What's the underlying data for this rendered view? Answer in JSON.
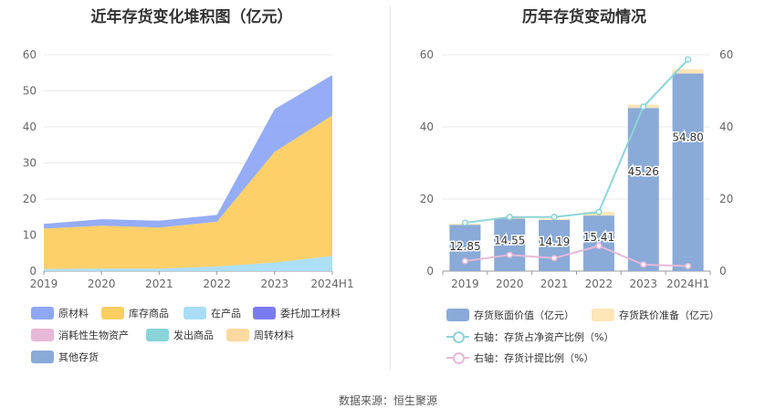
{
  "chart_data": [
    {
      "type": "area",
      "title": "近年存货变化堆积图（亿元）",
      "categories": [
        "2019",
        "2020",
        "2021",
        "2022",
        "2023",
        "2024H1"
      ],
      "ylim": [
        0,
        60
      ],
      "yticks": [
        "0",
        "10",
        "20",
        "30",
        "40",
        "50",
        "60"
      ],
      "stacked": true,
      "series": [
        {
          "name": "原材料",
          "color": "#8fa8f5",
          "values": [
            1.3,
            1.8,
            1.9,
            1.9,
            11.8,
            11.2
          ]
        },
        {
          "name": "库存商品",
          "color": "#fdce62",
          "values": [
            11.2,
            11.9,
            11.4,
            12.4,
            30.7,
            39.0
          ]
        },
        {
          "name": "在产品",
          "color": "#a9ddf5",
          "values": [
            0.6,
            0.7,
            0.7,
            1.3,
            2.4,
            4.2
          ]
        },
        {
          "name": "委托加工材料",
          "color": "#7b7bf0",
          "values": [
            0,
            0,
            0,
            0,
            0,
            0
          ]
        },
        {
          "name": "消耗性生物资产",
          "color": "#e8b8d8",
          "values": [
            0,
            0,
            0,
            0,
            0,
            0
          ]
        },
        {
          "name": "发出商品",
          "color": "#88d4d8",
          "values": [
            0,
            0,
            0,
            0,
            0,
            0
          ]
        },
        {
          "name": "周转材料",
          "color": "#fcd9a0",
          "values": [
            0,
            0,
            0,
            0,
            0,
            0
          ]
        },
        {
          "name": "其他存货",
          "color": "#8aaad8",
          "values": [
            0,
            0,
            0,
            0,
            0,
            0
          ]
        }
      ],
      "grid": true,
      "legend_position": "bottom"
    },
    {
      "type": "bar",
      "title": "历年存货变动情况",
      "categories": [
        "2019",
        "2020",
        "2021",
        "2022",
        "2023",
        "2024H1"
      ],
      "ylim": [
        0,
        60
      ],
      "yticks": [
        "0",
        "20",
        "40",
        "60"
      ],
      "y2lim": [
        0,
        60
      ],
      "y2ticks": [
        "0",
        "20",
        "40",
        "60"
      ],
      "stacked": true,
      "series": [
        {
          "name": "存货账面价值（亿元）",
          "color": "#8aaad8",
          "values": [
            12.85,
            14.55,
            14.19,
            15.41,
            45.26,
            54.8
          ],
          "labels": [
            "12.85",
            "14.55",
            "14.19",
            "15.41",
            "45.26",
            "54.80"
          ]
        },
        {
          "name": "存货跌价准备（亿元）",
          "color": "#fde6b8",
          "values": [
            0.3,
            0.3,
            0.35,
            1.0,
            0.9,
            1.2
          ]
        }
      ],
      "lines": [
        {
          "name": "右轴：存货占净资产比例（%）",
          "color": "#8ed4d8",
          "axis": "right",
          "values": [
            13.4,
            15.0,
            15.0,
            16.4,
            45.6,
            58.7
          ]
        },
        {
          "name": "右轴：存货计提比例（%）",
          "color": "#e8b8d8",
          "axis": "right",
          "values": [
            2.8,
            4.5,
            3.6,
            7.0,
            1.8,
            1.4
          ]
        }
      ],
      "grid": true,
      "legend_position": "bottom"
    }
  ],
  "source": "数据来源：恒生聚源"
}
